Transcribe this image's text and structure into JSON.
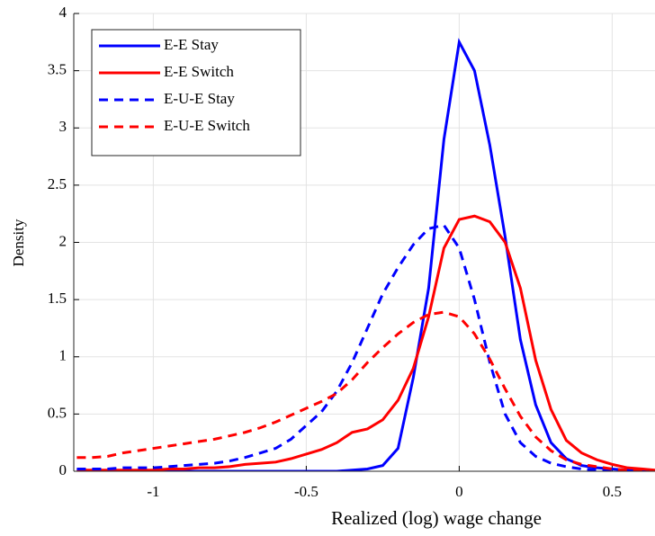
{
  "chart_data": {
    "type": "line",
    "xlabel": "Realized (log) wage change",
    "ylabel": "Density",
    "x": [
      -1.25,
      -1.2,
      -1.15,
      -1.1,
      -1.05,
      -1,
      -0.95,
      -0.9,
      -0.85,
      -0.8,
      -0.75,
      -0.7,
      -0.65,
      -0.6,
      -0.55,
      -0.5,
      -0.45,
      -0.4,
      -0.35,
      -0.3,
      -0.25,
      -0.2,
      -0.15,
      -0.1,
      -0.05,
      0,
      0.05,
      0.1,
      0.15,
      0.2,
      0.25,
      0.3,
      0.35,
      0.4,
      0.45,
      0.5,
      0.55,
      0.6,
      0.64
    ],
    "series": [
      {
        "name": "E-E Stay",
        "color": "#0000ff",
        "style": "solid",
        "values": [
          0,
          0,
          0,
          0,
          0,
          0,
          0,
          0,
          0,
          0,
          0,
          0,
          0,
          0,
          0,
          0,
          0,
          0,
          0.01,
          0.02,
          0.05,
          0.2,
          0.82,
          1.6,
          2.9,
          3.75,
          3.5,
          2.85,
          2.05,
          1.15,
          0.58,
          0.25,
          0.11,
          0.05,
          0.03,
          0.02,
          0.01,
          0.01,
          0
        ]
      },
      {
        "name": "E-E Switch",
        "color": "#ff0000",
        "style": "solid",
        "values": [
          0.01,
          0.01,
          0.01,
          0.01,
          0.01,
          0.01,
          0.02,
          0.02,
          0.03,
          0.03,
          0.04,
          0.06,
          0.07,
          0.08,
          0.11,
          0.15,
          0.19,
          0.25,
          0.34,
          0.37,
          0.45,
          0.62,
          0.9,
          1.35,
          1.95,
          2.2,
          2.23,
          2.18,
          2.0,
          1.6,
          0.97,
          0.54,
          0.27,
          0.16,
          0.1,
          0.06,
          0.03,
          0.02,
          0.01
        ]
      },
      {
        "name": "E-U-E Stay",
        "color": "#0000ff",
        "style": "dashed",
        "values": [
          0.02,
          0.02,
          0.02,
          0.03,
          0.03,
          0.03,
          0.04,
          0.05,
          0.06,
          0.07,
          0.09,
          0.12,
          0.16,
          0.2,
          0.28,
          0.4,
          0.52,
          0.7,
          0.95,
          1.25,
          1.55,
          1.78,
          1.98,
          2.12,
          2.15,
          1.95,
          1.5,
          0.95,
          0.5,
          0.25,
          0.13,
          0.07,
          0.04,
          0.02,
          0.01,
          0.01,
          0,
          0,
          0
        ]
      },
      {
        "name": "E-U-E Switch",
        "color": "#ff0000",
        "style": "dashed",
        "values": [
          0.12,
          0.12,
          0.13,
          0.16,
          0.18,
          0.2,
          0.22,
          0.24,
          0.26,
          0.28,
          0.31,
          0.34,
          0.38,
          0.43,
          0.49,
          0.55,
          0.61,
          0.68,
          0.8,
          0.95,
          1.08,
          1.2,
          1.3,
          1.37,
          1.39,
          1.35,
          1.2,
          0.98,
          0.72,
          0.48,
          0.3,
          0.18,
          0.1,
          0.06,
          0.04,
          0.02,
          0.01,
          0.01,
          0
        ]
      }
    ],
    "xlim": [
      -1.26,
      0.64
    ],
    "ylim": [
      0,
      4
    ],
    "xticks": [
      -1,
      -0.5,
      0,
      0.5
    ],
    "yticks": [
      0,
      0.5,
      1,
      1.5,
      2,
      2.5,
      3,
      3.5,
      4
    ],
    "grid": true,
    "legend": "upper left"
  }
}
